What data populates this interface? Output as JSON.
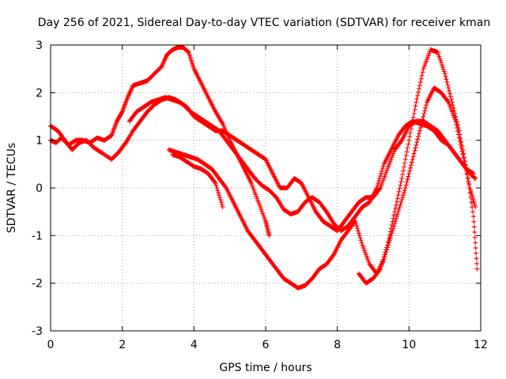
{
  "chart_data": {
    "type": "scatter",
    "title": "Day 256 of 2021, Sidereal Day-to-day VTEC variation (SDTVAR) for receiver kman",
    "xlabel": "GPS time / hours",
    "ylabel": "SDTVAR / TECUs",
    "xlim": [
      0,
      12
    ],
    "ylim": [
      -3,
      3
    ],
    "xticks": [
      "0",
      "2",
      "4",
      "6",
      "8",
      "10",
      "12"
    ],
    "yticks": [
      "-3",
      "-2",
      "-1",
      "0",
      "1",
      "2",
      "3"
    ],
    "grid": true,
    "marker": "+",
    "color": "#ff0000",
    "series": [
      {
        "x": [
          0.0,
          0.15,
          0.3,
          0.5,
          0.7,
          0.9,
          1.1,
          1.3,
          1.5,
          1.7,
          1.85,
          2.0,
          2.15,
          2.3,
          2.5,
          2.7,
          2.9,
          3.1,
          3.25,
          3.4,
          3.55,
          3.7,
          3.85,
          4.0,
          4.2,
          4.4,
          4.6,
          4.8,
          5.0,
          5.2,
          5.4,
          5.6,
          5.8,
          6.0,
          6.1
        ],
        "y": [
          1.0,
          0.95,
          1.05,
          0.9,
          1.0,
          1.0,
          0.95,
          1.05,
          1.0,
          1.1,
          1.4,
          1.6,
          1.9,
          2.15,
          2.2,
          2.25,
          2.4,
          2.55,
          2.8,
          2.9,
          2.95,
          2.95,
          2.85,
          2.5,
          2.2,
          1.9,
          1.6,
          1.35,
          1.0,
          0.7,
          0.4,
          0.1,
          -0.3,
          -0.7,
          -1.0
        ]
      },
      {
        "x": [
          0.0,
          0.2,
          0.4,
          0.6,
          0.8,
          1.0,
          1.2,
          1.4,
          1.7,
          1.9,
          2.1,
          2.3,
          2.5,
          2.7,
          2.9,
          3.1,
          3.3,
          3.5,
          3.7,
          3.9,
          4.1,
          4.3,
          4.5,
          4.7,
          4.9,
          5.1,
          5.3,
          5.5,
          5.7,
          5.9,
          6.1,
          6.3,
          6.5,
          6.7,
          6.9,
          7.1,
          7.3,
          7.5,
          7.7,
          7.9,
          8.1,
          8.3,
          8.5,
          8.7,
          8.9,
          9.1,
          9.3,
          9.5,
          9.7,
          9.9,
          10.1,
          10.3,
          10.5,
          10.7,
          10.9,
          11.1,
          11.3,
          11.5,
          11.7,
          11.85
        ],
        "y": [
          1.3,
          1.2,
          1.0,
          0.8,
          0.95,
          1.0,
          0.85,
          0.75,
          0.6,
          0.75,
          0.95,
          1.2,
          1.4,
          1.6,
          1.75,
          1.85,
          1.9,
          1.85,
          1.75,
          1.6,
          1.5,
          1.4,
          1.3,
          1.2,
          1.0,
          0.8,
          0.6,
          0.4,
          0.2,
          0.05,
          -0.05,
          -0.2,
          -0.45,
          -0.55,
          -0.5,
          -0.3,
          -0.2,
          -0.3,
          -0.5,
          -0.75,
          -0.9,
          -0.8,
          -0.6,
          -0.4,
          -0.3,
          0.0,
          0.5,
          0.8,
          1.1,
          1.3,
          1.4,
          1.35,
          1.3,
          1.2,
          1.0,
          0.9,
          0.7,
          0.5,
          0.3,
          0.2
        ]
      },
      {
        "x": [
          2.2,
          2.4,
          2.6,
          2.8,
          3.0,
          3.2,
          3.4,
          3.6,
          3.8,
          4.0,
          4.2,
          4.4,
          4.6,
          4.8,
          5.0,
          5.2,
          5.4,
          5.6,
          5.8,
          6.0,
          6.2,
          6.4,
          6.6,
          6.8,
          7.0,
          7.2,
          7.4,
          7.6,
          7.8,
          8.0,
          8.2,
          8.4,
          8.6,
          8.8,
          9.0,
          9.2,
          9.4,
          9.6,
          9.8,
          10.0,
          10.2,
          10.4,
          10.6,
          10.8,
          11.0,
          11.2,
          11.4,
          11.6,
          11.8
        ],
        "y": [
          1.4,
          1.6,
          1.7,
          1.8,
          1.85,
          1.9,
          1.85,
          1.8,
          1.7,
          1.5,
          1.4,
          1.3,
          1.2,
          1.2,
          1.1,
          1.0,
          0.9,
          0.8,
          0.7,
          0.6,
          0.3,
          0.0,
          0.0,
          0.2,
          0.1,
          -0.2,
          -0.5,
          -0.7,
          -0.8,
          -0.9,
          -0.7,
          -0.5,
          -0.3,
          -0.2,
          -0.2,
          0.0,
          0.4,
          0.8,
          1.0,
          1.3,
          1.4,
          1.4,
          1.3,
          1.2,
          1.0,
          0.8,
          0.6,
          0.4,
          0.3
        ]
      },
      {
        "x": [
          3.3,
          3.5,
          3.7,
          3.9,
          4.1,
          4.3,
          4.5,
          4.7,
          4.9,
          5.1,
          5.3,
          5.5,
          5.7,
          5.9,
          6.1,
          6.3,
          6.5,
          6.7,
          6.9,
          7.1,
          7.3,
          7.5,
          7.7,
          7.9,
          8.1,
          8.3,
          8.5,
          8.7,
          8.9,
          9.1,
          9.3,
          9.5,
          9.7,
          9.9,
          10.1,
          10.3,
          10.5,
          10.7,
          10.9,
          11.1,
          11.3,
          11.5,
          11.7,
          11.85
        ],
        "y": [
          0.8,
          0.75,
          0.7,
          0.65,
          0.6,
          0.5,
          0.4,
          0.2,
          0.0,
          -0.3,
          -0.6,
          -0.9,
          -1.1,
          -1.3,
          -1.5,
          -1.7,
          -1.9,
          -2.0,
          -2.1,
          -2.05,
          -1.9,
          -1.7,
          -1.6,
          -1.4,
          -1.1,
          -0.9,
          -0.7,
          -1.2,
          -1.6,
          -1.8,
          -1.5,
          -1.0,
          -0.5,
          0.0,
          0.6,
          1.2,
          1.8,
          2.1,
          2.0,
          1.8,
          1.4,
          0.7,
          0.0,
          -0.4
        ]
      },
      {
        "x": [
          8.6,
          8.8,
          9.0,
          9.2,
          9.4,
          9.6,
          9.8,
          10.0,
          10.2,
          10.4,
          10.6,
          10.8,
          11.0,
          11.2,
          11.4,
          11.6,
          11.8,
          11.9
        ],
        "y": [
          -1.8,
          -2.0,
          -1.9,
          -1.7,
          -1.2,
          -0.5,
          0.2,
          1.0,
          1.8,
          2.5,
          2.9,
          2.85,
          2.4,
          1.8,
          1.2,
          0.4,
          -0.6,
          -1.7
        ]
      },
      {
        "x": [
          3.4,
          3.6,
          3.8,
          4.0,
          4.2,
          4.4,
          4.6,
          4.8
        ],
        "y": [
          0.7,
          0.65,
          0.55,
          0.45,
          0.4,
          0.3,
          0.1,
          -0.4
        ]
      }
    ]
  }
}
